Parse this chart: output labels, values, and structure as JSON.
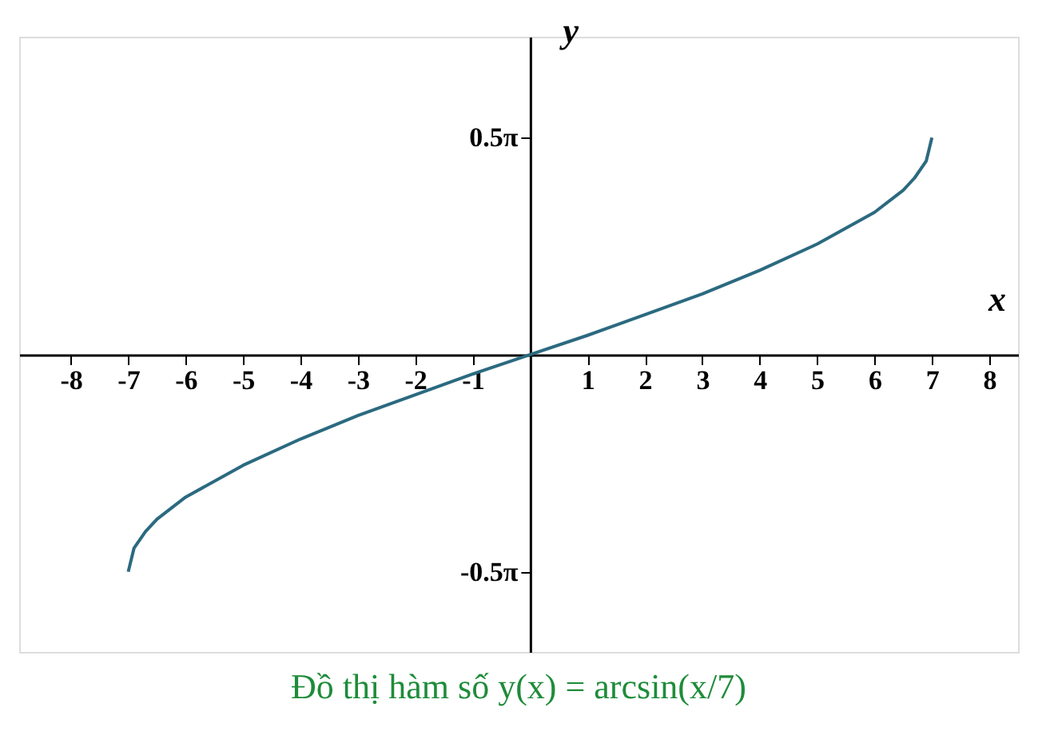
{
  "chart_data": {
    "type": "line",
    "x": [
      -7,
      -6.9,
      -6.7,
      -6.5,
      -6,
      -5,
      -4,
      -3,
      -2,
      -1,
      0,
      1,
      2,
      3,
      4,
      5,
      6,
      6.5,
      6.7,
      6.9,
      7
    ],
    "series": [
      {
        "color": "#2b6a80",
        "values": [
          -1.57,
          -1.4,
          -1.28,
          -1.19,
          -1.03,
          -0.8,
          -0.61,
          -0.44,
          -0.29,
          -0.14,
          0,
          0.14,
          0.29,
          0.44,
          0.61,
          0.8,
          1.03,
          1.19,
          1.28,
          1.4,
          1.57
        ]
      }
    ],
    "xlabel": "x",
    "ylabel": "y",
    "xlim": [
      -8.9,
      8.5
    ],
    "ylim": [
      -2.15,
      2.3
    ],
    "xticks": [
      -8,
      -7,
      -6,
      -5,
      -4,
      -3,
      -2,
      -1,
      1,
      2,
      3,
      4,
      5,
      6,
      7,
      8
    ],
    "yticks": [
      {
        "value": 1.571,
        "label": "0.5π"
      },
      {
        "value": -1.571,
        "label": "-0.5π"
      }
    ],
    "grid": false,
    "marker": "none",
    "line_style": "solid",
    "annotations": [
      "Đồ thị hàm số y(x) = arcsin(x/7)"
    ]
  }
}
